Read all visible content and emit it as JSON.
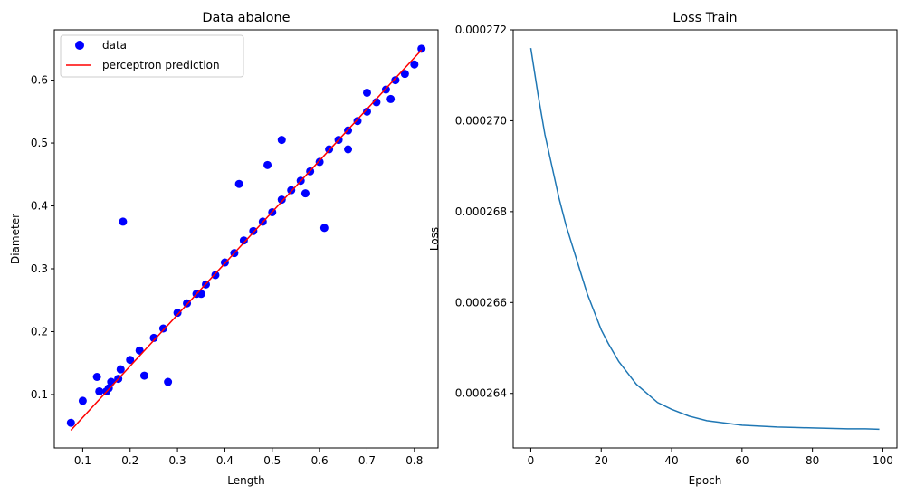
{
  "chart_data": [
    {
      "type": "scatter",
      "title": "Data abalone",
      "xlabel": "Length",
      "ylabel": "Diameter",
      "xlim": [
        0.04,
        0.85
      ],
      "ylim": [
        0.015,
        0.68
      ],
      "xticks": [
        0.1,
        0.2,
        0.3,
        0.4,
        0.5,
        0.6,
        0.7,
        0.8
      ],
      "xtick_labels": [
        "0.1",
        "0.2",
        "0.3",
        "0.4",
        "0.5",
        "0.6",
        "0.7",
        "0.8"
      ],
      "yticks": [
        0.1,
        0.2,
        0.3,
        0.4,
        0.5,
        0.6
      ],
      "ytick_labels": [
        "0.1",
        "0.2",
        "0.3",
        "0.4",
        "0.5",
        "0.6"
      ],
      "legend_position": "upper-left",
      "grid": false,
      "series": [
        {
          "name": "data",
          "kind": "scatter",
          "color": "#0000ff",
          "x": [
            0.075,
            0.1,
            0.13,
            0.135,
            0.155,
            0.175,
            0.185,
            0.23,
            0.28,
            0.15,
            0.16,
            0.18,
            0.2,
            0.22,
            0.25,
            0.27,
            0.3,
            0.32,
            0.34,
            0.36,
            0.38,
            0.4,
            0.42,
            0.44,
            0.46,
            0.48,
            0.5,
            0.52,
            0.54,
            0.56,
            0.58,
            0.6,
            0.62,
            0.64,
            0.66,
            0.68,
            0.7,
            0.72,
            0.74,
            0.76,
            0.78,
            0.8,
            0.815,
            0.61,
            0.49,
            0.43,
            0.35,
            0.66,
            0.7,
            0.52,
            0.57,
            0.75
          ],
          "y": [
            0.055,
            0.09,
            0.128,
            0.105,
            0.11,
            0.125,
            0.375,
            0.13,
            0.12,
            0.105,
            0.12,
            0.14,
            0.155,
            0.17,
            0.19,
            0.205,
            0.23,
            0.245,
            0.26,
            0.275,
            0.29,
            0.31,
            0.325,
            0.345,
            0.36,
            0.375,
            0.39,
            0.41,
            0.425,
            0.44,
            0.455,
            0.47,
            0.49,
            0.505,
            0.52,
            0.535,
            0.55,
            0.565,
            0.585,
            0.6,
            0.61,
            0.625,
            0.65,
            0.365,
            0.465,
            0.435,
            0.26,
            0.49,
            0.58,
            0.505,
            0.42,
            0.57
          ]
        },
        {
          "name": "perceptron prediction",
          "kind": "line",
          "color": "#ff0000",
          "x": [
            0.075,
            0.815
          ],
          "y": [
            0.043,
            0.648
          ]
        }
      ]
    },
    {
      "type": "line",
      "title": "Loss Train",
      "xlabel": "Epoch",
      "ylabel": "Loss",
      "xlim": [
        -5,
        104
      ],
      "ylim": [
        0.0002628,
        0.000272
      ],
      "xticks": [
        0,
        20,
        40,
        60,
        80,
        100
      ],
      "xtick_labels": [
        "0",
        "20",
        "40",
        "60",
        "80",
        "100"
      ],
      "yticks": [
        0.000264,
        0.000266,
        0.000268,
        0.00027,
        0.000272
      ],
      "ytick_labels": [
        "0.000264",
        "0.000266",
        "0.000268",
        "0.000270",
        "0.000272"
      ],
      "grid": false,
      "series": [
        {
          "name": "",
          "color": "#1f77b4",
          "x": [
            0,
            2,
            4,
            6,
            8,
            10,
            12,
            14,
            16,
            18,
            20,
            22,
            25,
            28,
            30,
            33,
            36,
            40,
            45,
            50,
            55,
            60,
            65,
            70,
            75,
            80,
            85,
            90,
            95,
            99
          ],
          "y": [
            0.0002716,
            0.0002706,
            0.0002697,
            0.000269,
            0.0002683,
            0.0002677,
            0.0002672,
            0.0002667,
            0.0002662,
            0.0002658,
            0.0002654,
            0.0002651,
            0.0002647,
            0.0002644,
            0.0002642,
            0.000264,
            0.0002638,
            0.00026365,
            0.0002635,
            0.0002634,
            0.00026335,
            0.0002633,
            0.00026328,
            0.00026326,
            0.00026325,
            0.00026324,
            0.00026323,
            0.00026322,
            0.00026322,
            0.00026321
          ]
        }
      ]
    }
  ]
}
